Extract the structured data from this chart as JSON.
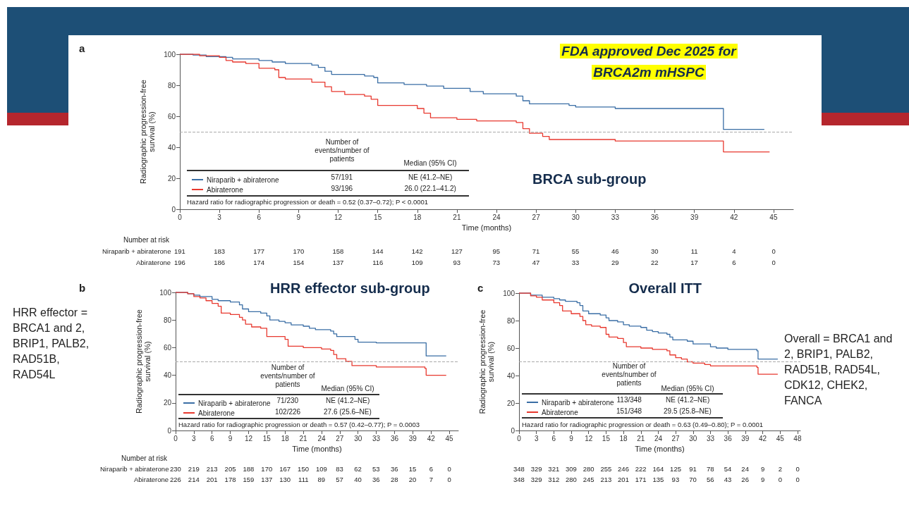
{
  "chart_data": [
    {
      "type": "step",
      "title": "BRCA sub-group",
      "xlabel": "Time (months)",
      "ylabel": "Radiographic progression-free survival (%)",
      "xlim": [
        0,
        46.5
      ],
      "xticks": [
        0,
        3,
        6,
        9,
        12,
        15,
        18,
        21,
        24,
        27,
        30,
        33,
        36,
        39,
        42,
        45
      ],
      "ylim": [
        0,
        100
      ],
      "yticks": [
        0,
        20,
        40,
        60,
        80,
        100
      ],
      "grid": false,
      "legend": "bottom left",
      "marker": "none",
      "line_style": "solid",
      "series": [
        {
          "name": "Niraparib + abiraterone",
          "color": "#3a6ea5",
          "x": [
            0,
            1,
            2,
            3.5,
            4,
            6,
            7,
            8,
            10,
            10.5,
            11,
            11.5,
            14,
            14.7,
            15,
            17,
            18.7,
            20,
            22,
            23,
            25.5,
            26,
            26.5,
            29.5,
            30,
            33,
            41.2,
            44.3
          ],
          "values": [
            100,
            99.5,
            98.5,
            98,
            97,
            96,
            95,
            94,
            93,
            91.5,
            89,
            87,
            86,
            85,
            81.5,
            80.5,
            79.5,
            78,
            76,
            74.5,
            73,
            70,
            68,
            67,
            66,
            65,
            51.5,
            51.5
          ]
        },
        {
          "name": "Abiraterone",
          "color": "#e8392f",
          "x": [
            0,
            1.5,
            3,
            3.5,
            4,
            5,
            6,
            7.2,
            7.5,
            8,
            10,
            11,
            11.5,
            12.5,
            14,
            14.5,
            15,
            18,
            18.5,
            19,
            21,
            22.5,
            25.5,
            26,
            26.5,
            27.5,
            28,
            33,
            41,
            41.2,
            44.7
          ],
          "values": [
            100,
            99,
            98,
            96,
            95,
            94,
            91,
            90,
            85,
            84,
            82,
            79,
            76,
            74,
            73,
            71,
            67,
            65,
            62,
            59,
            58,
            57,
            56,
            52,
            49,
            47,
            45,
            44,
            44,
            37,
            37
          ]
        }
      ],
      "ref_lines": [
        {
          "axis": "y",
          "value": 50,
          "color": "#aaaaaa",
          "line_style": "dashed"
        }
      ],
      "annotations": [
        "a",
        "FDA approved Dec 2025 for BRCA2m mHSPC",
        "Number of events/number of patients",
        "Median (95% CI)",
        "57/191",
        "NE (41.2–NE)",
        "93/196",
        "26.0 (22.1–41.2)",
        "Hazard ratio for radiographic progression or death = 0.52 (0.37–0.72); P < 0.0001",
        "Number at risk",
        "191 183 177 170 158 144 142 127 95 71 55 46 30 11 4 0",
        "196 186 174 154 137 116 109 93 73 47 33 29 22 17 6 0"
      ]
    },
    {
      "type": "step",
      "title": "HRR effector sub-group",
      "xlabel": "Time (months)",
      "ylabel": "Radiographic progression-free survival (%)",
      "xlim": [
        0,
        46.5
      ],
      "xticks": [
        0,
        3,
        6,
        9,
        12,
        15,
        18,
        21,
        24,
        27,
        30,
        33,
        36,
        39,
        42,
        45
      ],
      "ylim": [
        0,
        100
      ],
      "yticks": [
        0,
        20,
        40,
        60,
        80,
        100
      ],
      "grid": false,
      "legend": "bottom left",
      "marker": "none",
      "line_style": "solid",
      "series": [
        {
          "name": "Niraparib + abiraterone",
          "color": "#3a6ea5",
          "x": [
            0,
            2,
            3,
            4,
            6,
            7,
            9,
            10.5,
            11,
            12,
            14,
            15,
            15.5,
            17,
            18,
            19,
            21,
            22,
            23,
            25.5,
            26,
            26.5,
            29.5,
            30,
            33,
            41.2,
            44.5
          ],
          "values": [
            100,
            99,
            98,
            97,
            95,
            94,
            93,
            91,
            88,
            86,
            85,
            83,
            80,
            79,
            78,
            76.5,
            75.5,
            74,
            73,
            72,
            70,
            68,
            66,
            64,
            63.5,
            54,
            54
          ]
        },
        {
          "name": "Abiraterone",
          "color": "#e8392f",
          "x": [
            0,
            2,
            3,
            4,
            5,
            6,
            7,
            7.5,
            9,
            10.5,
            11,
            11.5,
            12.5,
            14,
            15,
            18,
            18.5,
            21,
            24,
            25.5,
            26,
            26.5,
            28,
            29,
            33,
            41,
            41.2,
            44.5
          ],
          "values": [
            100,
            99,
            97,
            96,
            94,
            92,
            90,
            85,
            84,
            82,
            80,
            77,
            75,
            74,
            68,
            66,
            61,
            60,
            59,
            58,
            55,
            52,
            50,
            47,
            46,
            45,
            40,
            40
          ]
        }
      ],
      "ref_lines": [
        {
          "axis": "y",
          "value": 50,
          "color": "#aaaaaa",
          "line_style": "dashed"
        }
      ],
      "annotations": [
        "b",
        "HRR effector = BRCA1 and 2, BRIP1, PALB2, RAD51B, RAD54L",
        "Number of events/number of patients",
        "Median (95% CI)",
        "71/230",
        "NE (41.2–NE)",
        "102/226",
        "27.6 (25.6–NE)",
        "Hazard ratio for radiographic progression or death = 0.57 (0.42–0.77); P = 0.0003",
        "Number at risk",
        "230 219 213 205 188 170 167 150 109 83 62 53 36 15 6 0",
        "226 214 201 178 159 137 130 111 89 57 40 36 28 20 7 0"
      ]
    },
    {
      "type": "step",
      "title": "Overall ITT",
      "xlabel": "Time (months)",
      "ylabel": "Radiographic progression-free survival (%)",
      "xlim": [
        0,
        48.5
      ],
      "xticks": [
        0,
        3,
        6,
        9,
        12,
        15,
        18,
        21,
        24,
        27,
        30,
        33,
        36,
        39,
        42,
        45,
        48
      ],
      "ylim": [
        0,
        100
      ],
      "yticks": [
        0,
        20,
        40,
        60,
        80,
        100
      ],
      "grid": false,
      "legend": "bottom left",
      "marker": "none",
      "line_style": "solid",
      "series": [
        {
          "name": "Niraparib + abiraterone",
          "color": "#3a6ea5",
          "x": [
            0,
            2,
            4,
            6,
            7,
            8,
            10,
            10.5,
            11,
            12,
            14,
            15,
            15.5,
            17,
            18,
            19,
            21,
            22,
            23,
            24,
            25.5,
            26,
            26.5,
            29,
            30,
            33,
            34,
            36,
            41,
            41.2,
            44.6
          ],
          "values": [
            100,
            98.5,
            97,
            96,
            95,
            94,
            93,
            91,
            87,
            85,
            84,
            82,
            80,
            79,
            77,
            76,
            75,
            73,
            72,
            71,
            70,
            68,
            66,
            65,
            63,
            61,
            60,
            59,
            58,
            52,
            52
          ]
        },
        {
          "name": "Abiraterone",
          "color": "#e8392f",
          "x": [
            0,
            2,
            3,
            4,
            6,
            7,
            7.5,
            9,
            10.5,
            11,
            11.5,
            12.5,
            14,
            15,
            15.5,
            17,
            18,
            18.5,
            21,
            23,
            25.5,
            26,
            27,
            28,
            29,
            30,
            32,
            33,
            40,
            41,
            41.2,
            44.6
          ],
          "values": [
            100,
            98,
            97,
            95,
            93,
            91,
            87,
            85,
            83,
            80,
            77,
            76,
            75,
            70,
            68,
            67,
            64,
            61,
            60,
            59,
            58,
            55,
            53,
            52,
            50,
            49,
            48,
            47,
            47,
            46,
            41,
            41
          ]
        }
      ],
      "ref_lines": [
        {
          "axis": "y",
          "value": 50,
          "color": "#aaaaaa",
          "line_style": "dashed"
        }
      ],
      "annotations": [
        "c",
        "Overall = BRCA1 and 2, BRIP1, PALB2, RAD51B, RAD54L, CDK12, CHEK2, FANCA",
        "Number of events/number of patients",
        "Median (95% CI)",
        "113/348",
        "NE (41.2–NE)",
        "151/348",
        "29.5 (25.8–NE)",
        "Hazard ratio for radiographic progression or death = 0.63 (0.49–0.80); P = 0.0001",
        "348 329 321 309 280 255 246 222 164 125 91 78 54 24 9 2 0",
        "348 329 312 280 245 213 201 171 135 93 70 56 43 26 9 0 0"
      ]
    }
  ]
}
